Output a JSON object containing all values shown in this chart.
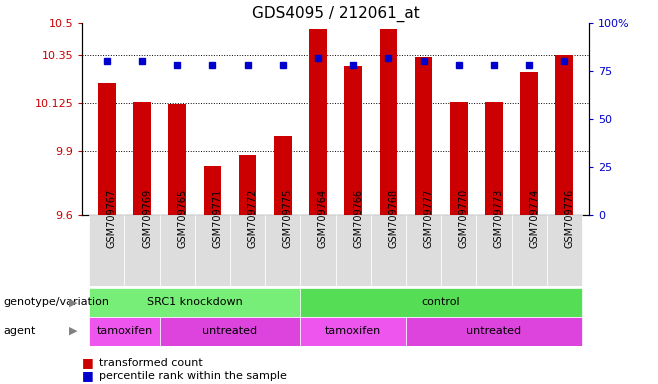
{
  "title": "GDS4095 / 212061_at",
  "samples": [
    "GSM709767",
    "GSM709769",
    "GSM709765",
    "GSM709771",
    "GSM709772",
    "GSM709775",
    "GSM709764",
    "GSM709766",
    "GSM709768",
    "GSM709777",
    "GSM709770",
    "GSM709773",
    "GSM709774",
    "GSM709776"
  ],
  "bar_values": [
    10.22,
    10.13,
    10.12,
    9.83,
    9.88,
    9.97,
    10.47,
    10.3,
    10.47,
    10.34,
    10.13,
    10.13,
    10.27,
    10.35
  ],
  "dot_values": [
    80,
    80,
    78,
    78,
    78,
    78,
    82,
    78,
    82,
    80,
    78,
    78,
    78,
    80
  ],
  "ylim_left": [
    9.6,
    10.5
  ],
  "ylim_right": [
    0,
    100
  ],
  "yticks_left": [
    9.6,
    9.9,
    10.125,
    10.35,
    10.5
  ],
  "ytick_labels_left": [
    "9.6",
    "9.9",
    "10.125",
    "10.35",
    "10.5"
  ],
  "yticks_right": [
    0,
    25,
    50,
    75,
    100
  ],
  "ytick_labels_right": [
    "0",
    "25",
    "50",
    "75",
    "100%"
  ],
  "hlines": [
    9.9,
    10.125,
    10.35
  ],
  "bar_color": "#cc0000",
  "dot_color": "#0000cc",
  "bar_width": 0.5,
  "genotype_groups": [
    {
      "label": "SRC1 knockdown",
      "start": 0,
      "end": 6,
      "color": "#77ee77"
    },
    {
      "label": "control",
      "start": 6,
      "end": 14,
      "color": "#55dd55"
    }
  ],
  "agent_groups": [
    {
      "label": "tamoxifen",
      "start": 0,
      "end": 2,
      "color": "#ee55ee"
    },
    {
      "label": "untreated",
      "start": 2,
      "end": 6,
      "color": "#dd44dd"
    },
    {
      "label": "tamoxifen",
      "start": 6,
      "end": 9,
      "color": "#ee55ee"
    },
    {
      "label": "untreated",
      "start": 9,
      "end": 14,
      "color": "#dd44dd"
    }
  ],
  "legend_items": [
    {
      "label": "transformed count",
      "color": "#cc0000"
    },
    {
      "label": "percentile rank within the sample",
      "color": "#0000cc"
    }
  ],
  "label_genotype": "genotype/variation",
  "label_agent": "agent",
  "background_color": "#ffffff",
  "axis_label_color_left": "#cc0000",
  "axis_label_color_right": "#0000cc",
  "title_fontsize": 11,
  "tick_fontsize": 8,
  "sample_fontsize": 7,
  "sample_bg_color": "#dddddd"
}
